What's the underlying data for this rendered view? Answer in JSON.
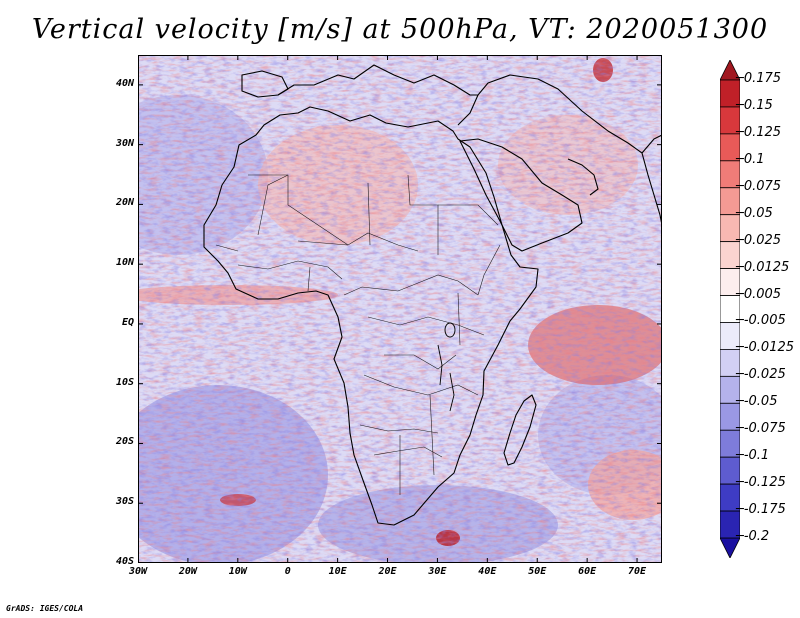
{
  "title": "Vertical velocity [m/s] at 500hPa, VT: 2020051300",
  "footer": "GrADS: IGES/COLA",
  "map": {
    "projection": "latlon",
    "lon_range": [
      -30,
      75
    ],
    "lat_range": [
      -40,
      45
    ],
    "lat_labels": [
      "40N",
      "30N",
      "20N",
      "10N",
      "EQ",
      "10S",
      "20S",
      "30S",
      "40S"
    ],
    "lat_values": [
      40,
      30,
      20,
      10,
      0,
      -10,
      -20,
      -30,
      -40
    ],
    "lon_labels": [
      "30W",
      "20W",
      "10W",
      "0",
      "10E",
      "20E",
      "30E",
      "40E",
      "50E",
      "60E",
      "70E"
    ],
    "lon_values": [
      -30,
      -20,
      -10,
      0,
      10,
      20,
      30,
      40,
      50,
      60,
      70
    ]
  },
  "colorbar": {
    "labels": [
      "0.175",
      "0.15",
      "0.125",
      "0.1",
      "0.075",
      "0.05",
      "0.025",
      "0.0125",
      "0.005",
      "-0.005",
      "-0.0125",
      "-0.025",
      "-0.05",
      "-0.075",
      "-0.1",
      "-0.125",
      "-0.175",
      "-0.2"
    ],
    "colors": [
      "#a01820",
      "#c02028",
      "#d8383c",
      "#e85a58",
      "#f07c78",
      "#f49a94",
      "#f8b8b2",
      "#fbd4d0",
      "#fdeeee",
      "#ffffff",
      "#ecebfa",
      "#d2d0f4",
      "#b4b2ec",
      "#9a98e4",
      "#7e7cda",
      "#5e5cd0",
      "#3e3cc4",
      "#2a24b2",
      "#1a10a0"
    ]
  }
}
